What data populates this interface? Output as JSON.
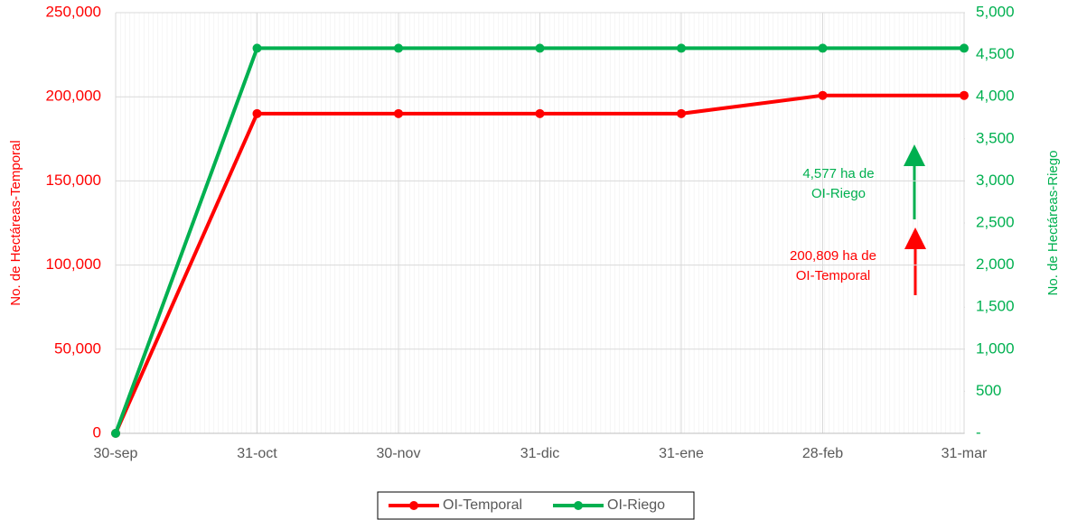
{
  "chart_data": {
    "type": "line",
    "categories": [
      "30-sep",
      "31-oct",
      "30-nov",
      "31-dic",
      "31-ene",
      "28-feb",
      "31-mar"
    ],
    "series": [
      {
        "name": "OI-Temporal",
        "color": "#ff0000",
        "values": [
          0,
          190000,
          190000,
          190000,
          190000,
          200809,
          200809
        ]
      },
      {
        "name": "OI-Riego",
        "color": "#00b050",
        "axis": "y2",
        "values": [
          0,
          4577,
          4577,
          4577,
          4577,
          4577,
          4577
        ]
      }
    ],
    "ylabel": "No. de Hectáreas-Temporal",
    "y2label": "No. de Hectáreas-Riego",
    "ylim": [
      0,
      250000
    ],
    "yticks": [
      0,
      {
        "value": 50000,
        "label": "50,000"
      },
      {
        "value": 100000,
        "label": "100,000"
      },
      {
        "value": 150000,
        "label": "150,000"
      },
      {
        "value": 200000,
        "label": "200,000"
      },
      {
        "value": 250000,
        "label": "250,000"
      }
    ],
    "y2lim": [
      0,
      5000
    ],
    "y2ticks": [
      {
        "value": 0,
        "label": "-"
      },
      500,
      {
        "value": 1000,
        "label": "1,000"
      },
      {
        "value": 1500,
        "label": "1,500"
      },
      {
        "value": 2000,
        "label": "2,000"
      },
      {
        "value": 2500,
        "label": "2,500"
      },
      {
        "value": 3000,
        "label": "3,000"
      },
      {
        "value": 3500,
        "label": "3,500"
      },
      {
        "value": 4000,
        "label": "4,000"
      },
      {
        "value": 4500,
        "label": "4,500"
      },
      {
        "value": 5000,
        "label": "5,000"
      }
    ],
    "grid": true,
    "legend": "bottom",
    "annotations": [
      {
        "lines": [
          "4,577 ha de",
          "OI-Riego"
        ],
        "color": "#00b050"
      },
      {
        "lines": [
          "200,809 ha de",
          "OI-Temporal"
        ],
        "color": "#ff0000"
      }
    ]
  }
}
